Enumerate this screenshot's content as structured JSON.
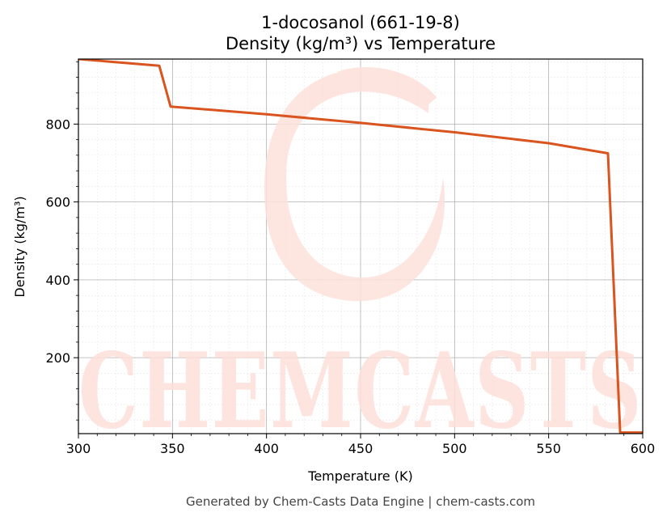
{
  "chart_data": {
    "type": "line",
    "title": "1-docosanol (661-19-8)",
    "subtitle": "Density (kg/m³) vs Temperature",
    "xlabel": "Temperature (K)",
    "ylabel": "Density (kg/m³)",
    "xlim": [
      300,
      600
    ],
    "ylim": [
      5,
      967
    ],
    "xticks": [
      300,
      350,
      400,
      450,
      500,
      550,
      600
    ],
    "yticks": [
      200,
      400,
      600,
      800
    ],
    "grid": true,
    "series": [
      {
        "color": "#d9541e",
        "x": [
          300,
          343,
          349,
          400,
          450,
          500,
          550,
          581.5,
          588,
          600
        ],
        "y": [
          967,
          950,
          845,
          825,
          803,
          779,
          751,
          725,
          8,
          8
        ]
      }
    ]
  },
  "watermark": {
    "text": "CHEMCASTS",
    "color": "#fde0da"
  },
  "footer": "Generated by Chem-Casts Data Engine | chem-casts.com"
}
